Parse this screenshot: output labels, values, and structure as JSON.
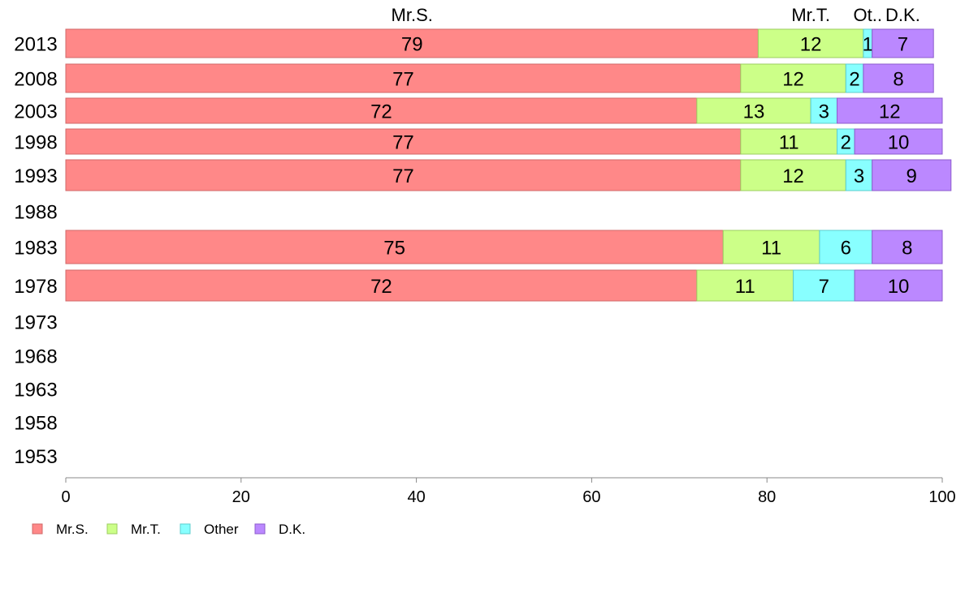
{
  "chart_data": {
    "type": "bar",
    "orientation": "horizontal",
    "stacked": true,
    "categories": [
      "2013",
      "2008",
      "2003",
      "1998",
      "1993",
      "1988",
      "1983",
      "1978",
      "1973",
      "1968",
      "1963",
      "1958",
      "1953"
    ],
    "series": [
      {
        "name": "Mr.S.",
        "color": "#ff8888",
        "stroke": "#d06868",
        "values": [
          79,
          77,
          72,
          77,
          77,
          null,
          75,
          72,
          null,
          null,
          null,
          null,
          null
        ]
      },
      {
        "name": "Mr.T.",
        "color": "#ccff88",
        "stroke": "#9ccc60",
        "values": [
          12,
          12,
          13,
          11,
          12,
          null,
          11,
          11,
          null,
          null,
          null,
          null,
          null
        ]
      },
      {
        "name": "Other",
        "color": "#88ffff",
        "stroke": "#5ccccc",
        "values": [
          1,
          2,
          3,
          2,
          3,
          null,
          6,
          7,
          null,
          null,
          null,
          null,
          null
        ]
      },
      {
        "name": "D.K.",
        "color": "#bb88ff",
        "stroke": "#8c5ccc",
        "values": [
          7,
          8,
          12,
          10,
          9,
          null,
          8,
          10,
          null,
          null,
          null,
          null,
          null
        ]
      }
    ],
    "top_labels": [
      "Mr.S.",
      "Mr.T.",
      "Ot..",
      "D.K."
    ],
    "xlim": [
      0,
      100
    ],
    "xticks": [
      0,
      20,
      40,
      60,
      80,
      100
    ],
    "grid": false,
    "legend_position": "bottom-left"
  }
}
